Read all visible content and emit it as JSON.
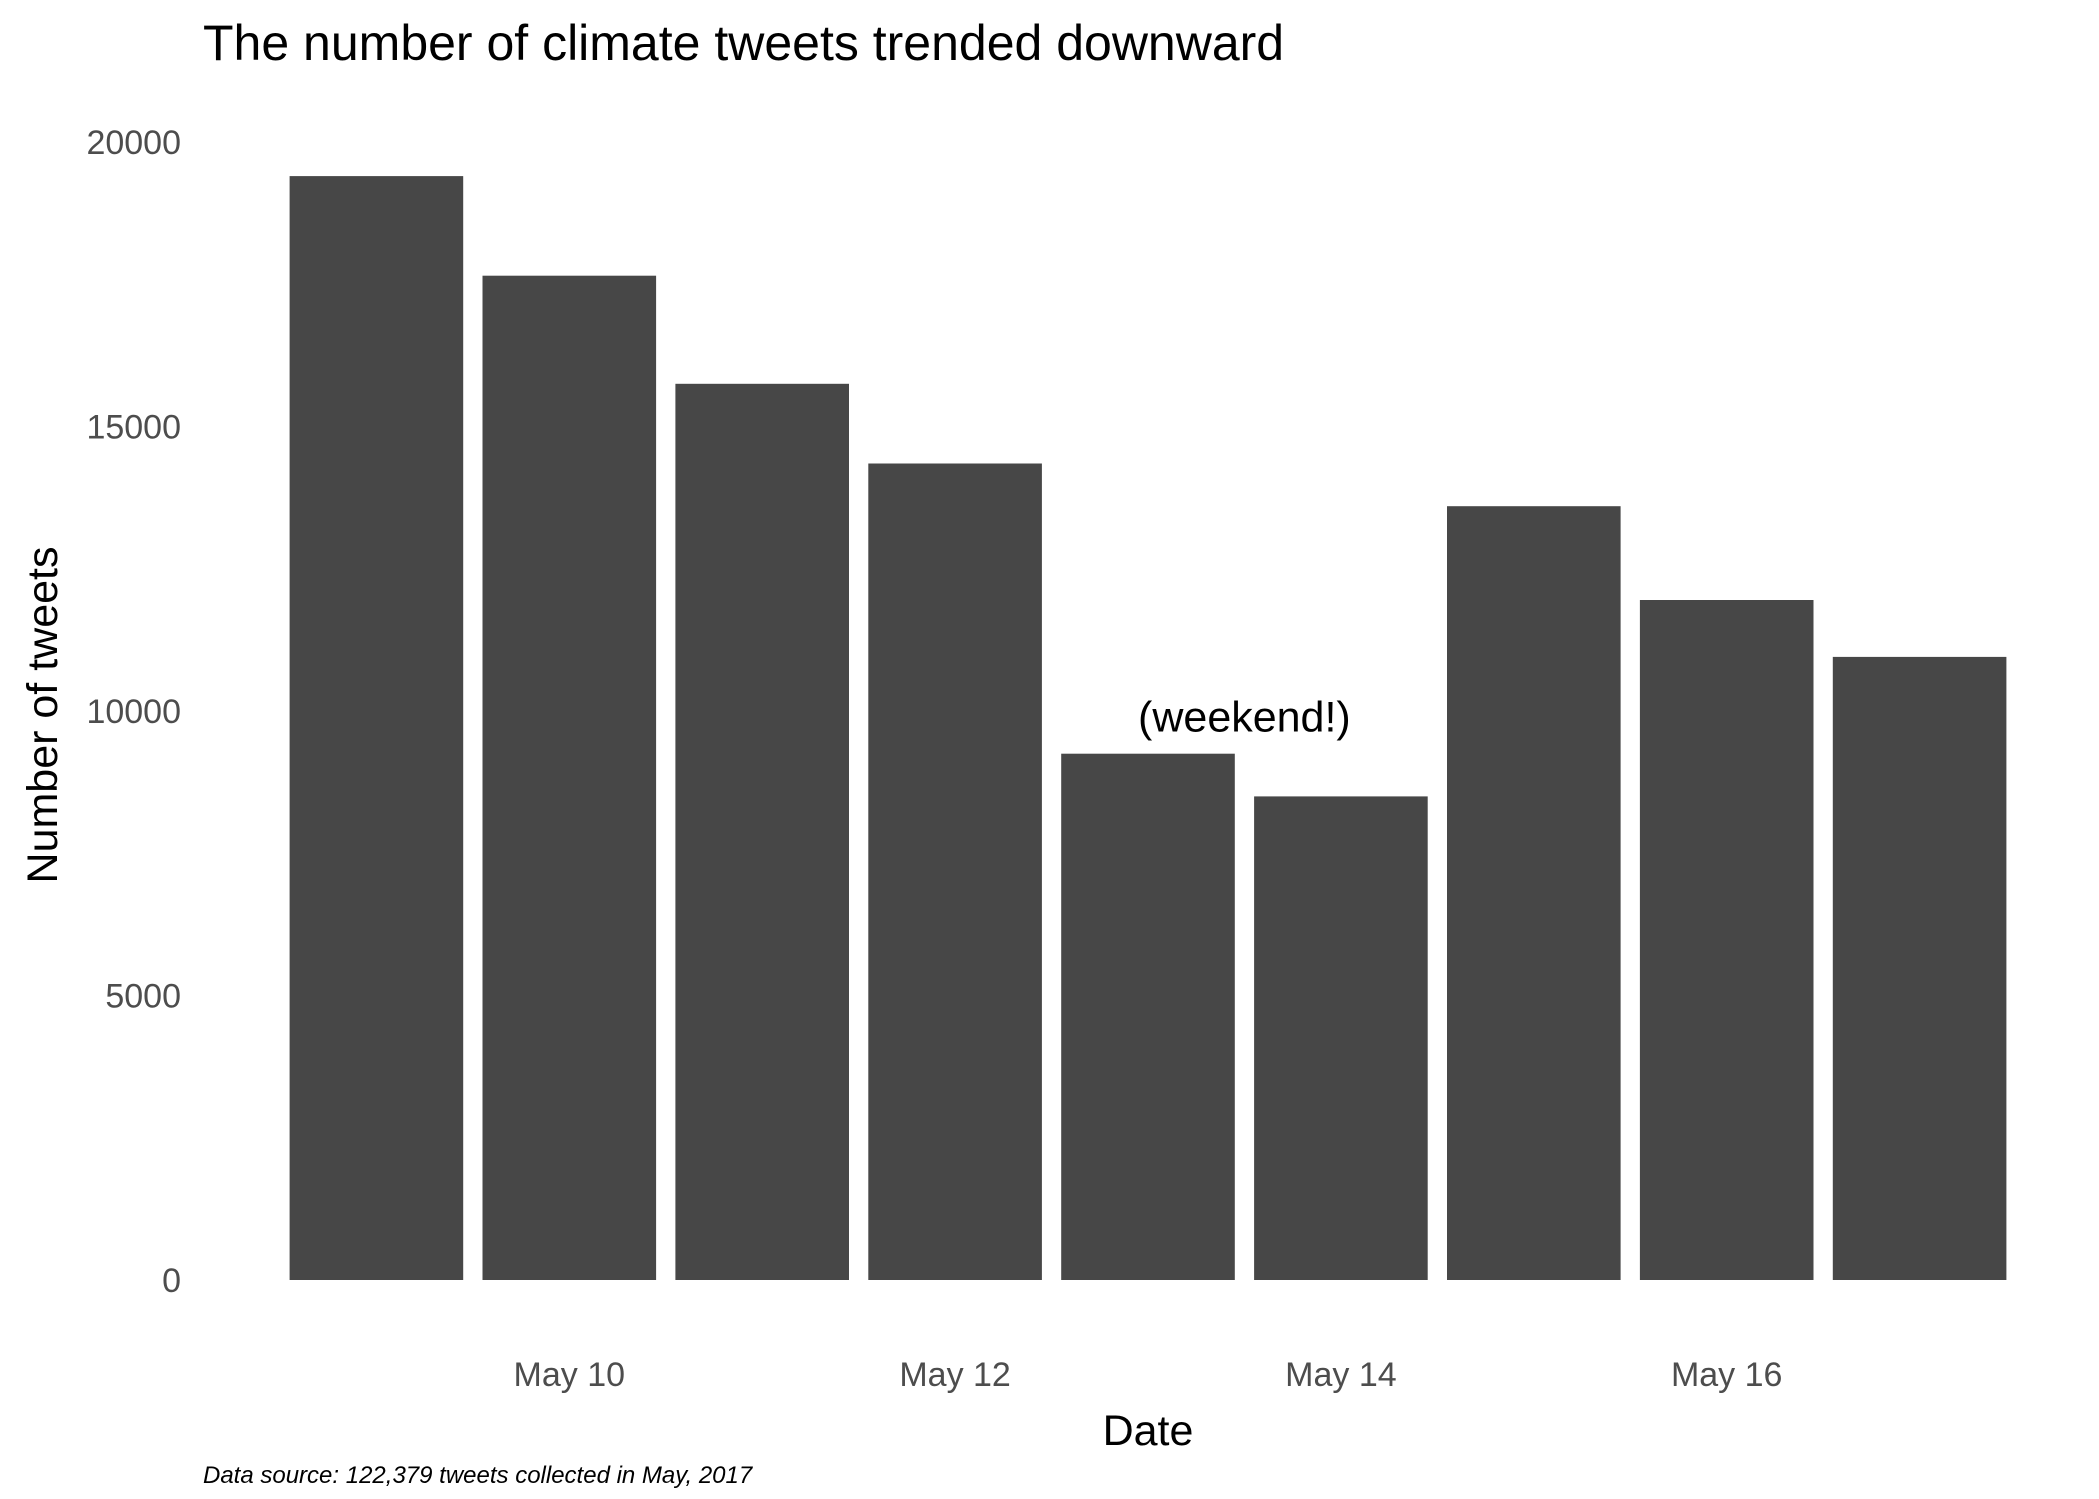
{
  "chart_data": {
    "type": "bar",
    "title": "The number of climate tweets trended downward",
    "xlabel": "Date",
    "ylabel": "Number of tweets",
    "caption": "Data source: 122,379 tweets collected in May, 2017",
    "categories": [
      "2017-05-09",
      "2017-05-10",
      "2017-05-11",
      "2017-05-12",
      "2017-05-13",
      "2017-05-14",
      "2017-05-15",
      "2017-05-16",
      "2017-05-17"
    ],
    "values": [
      19400,
      17650,
      15750,
      14350,
      9250,
      8500,
      13600,
      11950,
      10950
    ],
    "ylim": [
      0,
      20000
    ],
    "yticks": [
      0,
      5000,
      10000,
      15000,
      20000
    ],
    "xticks": [
      {
        "date": "2017-05-10",
        "label": "May 10"
      },
      {
        "date": "2017-05-12",
        "label": "May 12"
      },
      {
        "date": "2017-05-14",
        "label": "May 14"
      },
      {
        "date": "2017-05-16",
        "label": "May 16"
      }
    ],
    "annotation": {
      "text": "(weekend!)",
      "date": "2017-05-13.5",
      "value": 9900
    },
    "grid": false,
    "bar_color": "#474747",
    "background": "#ffffff"
  }
}
